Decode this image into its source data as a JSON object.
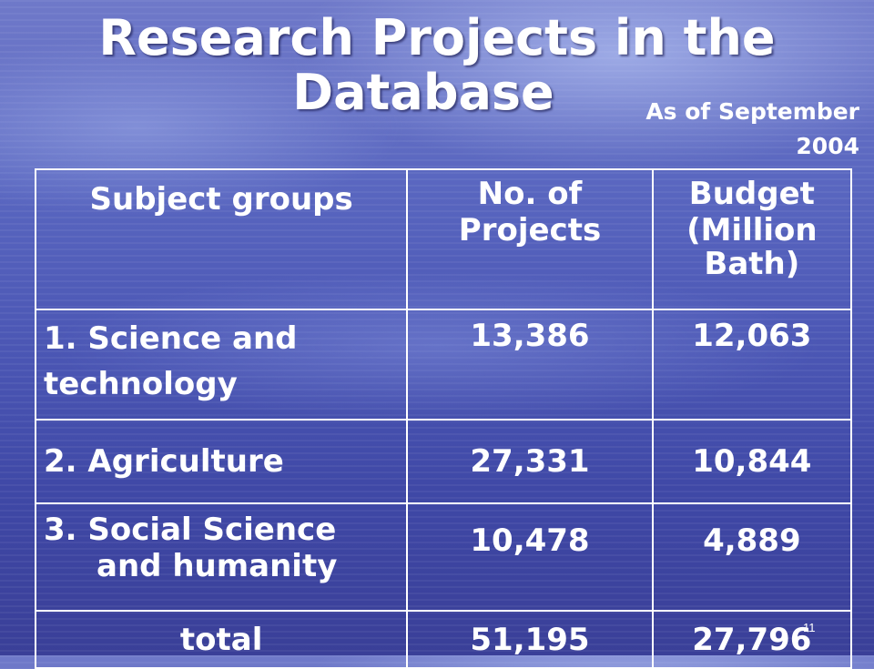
{
  "slide": {
    "title_line1": "Research Projects in the",
    "title_line2": "Database",
    "as_of_line1": "As of September",
    "as_of_line2": "2004",
    "page_number": "11"
  },
  "table": {
    "header": {
      "subject": "Subject  groups",
      "projects_line1": "No. of",
      "projects_line2": "Projects",
      "budget_line1": "Budget",
      "budget_line2": "(Million",
      "budget_line3": "Bath)"
    },
    "rows": [
      {
        "label_line1": "1. Science and",
        "label_line2": "technology",
        "projects": "13,386",
        "budget": "12,063"
      },
      {
        "label_line1": "2. Agriculture",
        "projects": "27,331",
        "budget": "10,844"
      },
      {
        "label_line1": "3. Social Science",
        "label_line2": "and humanity",
        "projects": "10,478",
        "budget": "4,889"
      },
      {
        "label_line1": "total",
        "projects": "51,195",
        "budget": "27,796"
      }
    ]
  }
}
